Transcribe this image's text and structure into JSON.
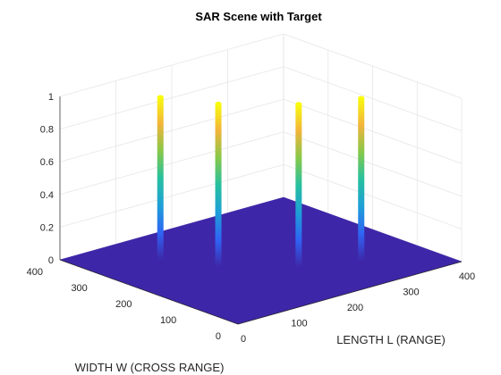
{
  "chart_data": {
    "type": "surface3d",
    "title": "SAR Scene with Target",
    "xlabel": "LENGTH L (RANGE)",
    "ylabel": "WIDTH W (CROSS RANGE)",
    "zlabel": "",
    "xlim": [
      0,
      400
    ],
    "ylim": [
      0,
      400
    ],
    "zlim": [
      0,
      1
    ],
    "x_ticks": [
      "0",
      "100",
      "200",
      "300",
      "400"
    ],
    "y_ticks": [
      "0",
      "100",
      "200",
      "300",
      "400"
    ],
    "z_ticks": [
      "0",
      "0.2",
      "0.4",
      "0.6",
      "0.8",
      "1"
    ],
    "grid": true,
    "colormap": "parula",
    "background_value": 0,
    "targets": [
      {
        "x": 100,
        "y": 300,
        "z": 1.0
      },
      {
        "x": 140,
        "y": 220,
        "z": 1.0
      },
      {
        "x": 220,
        "y": 140,
        "z": 1.0
      },
      {
        "x": 300,
        "y": 100,
        "z": 1.0
      }
    ]
  },
  "colors": {
    "floor": "#3e26a8",
    "grid": "#e6e6e6",
    "axis": "#262626",
    "parula_stops": [
      "#3e26a8",
      "#2f64f4",
      "#1e9fd8",
      "#26c0a0",
      "#86c84a",
      "#f2b43a",
      "#f9fb0e"
    ]
  }
}
